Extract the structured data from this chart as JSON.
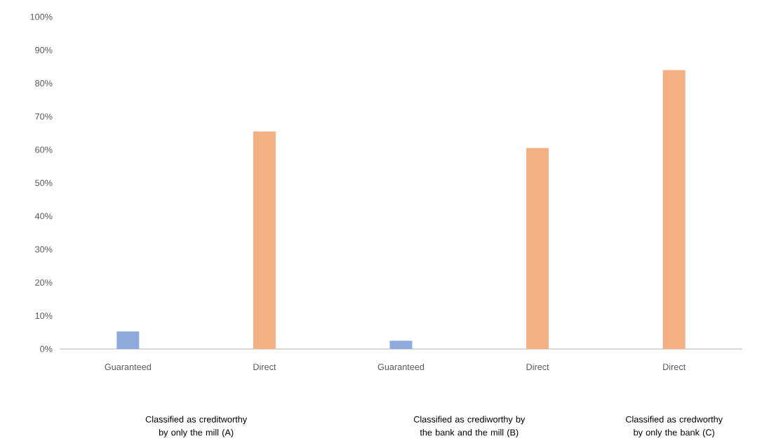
{
  "chart_data": {
    "type": "bar",
    "categories": [
      "Guaranteed",
      "Direct",
      "Guaranteed",
      "Direct",
      "Direct"
    ],
    "values": [
      5.3,
      65.5,
      2.5,
      60.5,
      84
    ],
    "colors": [
      "#8faadc",
      "#f4b183",
      "#8faadc",
      "#f4b183",
      "#f4b183"
    ],
    "ylim": [
      0,
      100
    ],
    "yticks": [
      {
        "value": 0,
        "label": "0%"
      },
      {
        "value": 10,
        "label": "10%"
      },
      {
        "value": 20,
        "label": "20%"
      },
      {
        "value": 30,
        "label": "30%"
      },
      {
        "value": 40,
        "label": "40%"
      },
      {
        "value": 50,
        "label": "50%"
      },
      {
        "value": 60,
        "label": "60%"
      },
      {
        "value": 70,
        "label": "70%"
      },
      {
        "value": 80,
        "label": "80%"
      },
      {
        "value": 90,
        "label": "90%"
      },
      {
        "value": 100,
        "label": "100%"
      }
    ],
    "grid": false,
    "annotations": [
      "Classified as creditworthy by only the mill (A)",
      "Classified as crediworthy by the bank and the mill (B)",
      "Classified as credworthy by only the bank (C)"
    ]
  }
}
